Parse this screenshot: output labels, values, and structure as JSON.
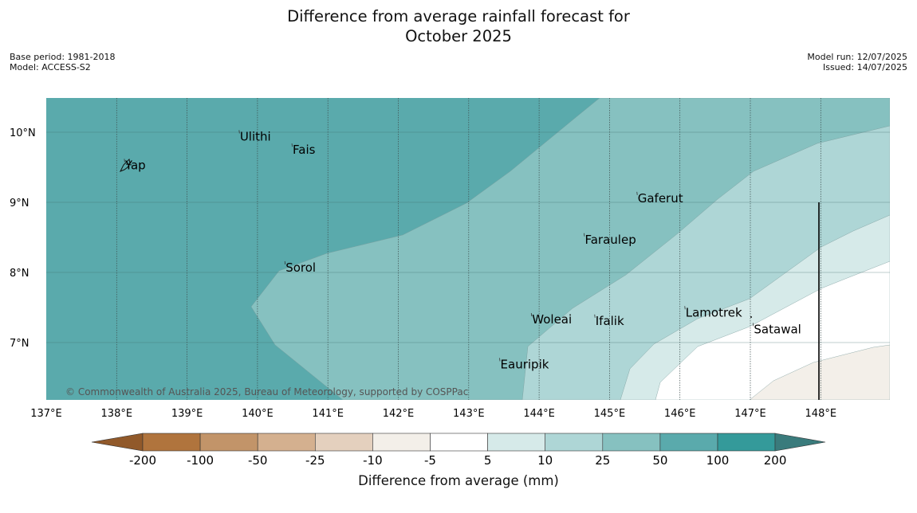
{
  "title": {
    "line1": "Difference from average rainfall forecast for",
    "line2": "October 2025"
  },
  "meta": {
    "base_period": "Base period: 1981-2018",
    "model": "Model: ACCESS-S2",
    "model_run": "Model run: 12/07/2025",
    "issued": "Issued: 14/07/2025"
  },
  "map": {
    "copyright": "© Commonwealth of Australia 2025, Bureau of Meteorology, supported by COSPPac",
    "lon_labels": [
      "137°E",
      "138°E",
      "139°E",
      "140°E",
      "141°E",
      "142°E",
      "143°E",
      "144°E",
      "145°E",
      "146°E",
      "147°E",
      "148°E"
    ],
    "lat_labels": [
      "10°N",
      "9°N",
      "8°N",
      "7°N"
    ],
    "places": [
      {
        "name": "Ulithi",
        "lon": 139.75,
        "lat": 9.95
      },
      {
        "name": "Fais",
        "lon": 140.5,
        "lat": 9.76
      },
      {
        "name": "Yap",
        "lon": 138.12,
        "lat": 9.54
      },
      {
        "name": "Gaferut",
        "lon": 145.4,
        "lat": 9.07
      },
      {
        "name": "Faraulep",
        "lon": 144.65,
        "lat": 8.48
      },
      {
        "name": "Sorol",
        "lon": 140.4,
        "lat": 8.08
      },
      {
        "name": "Woleai",
        "lon": 143.9,
        "lat": 7.34
      },
      {
        "name": "Ifalik",
        "lon": 144.8,
        "lat": 7.32
      },
      {
        "name": "Lamotrek",
        "lon": 146.08,
        "lat": 7.44
      },
      {
        "name": "Satawal",
        "lon": 147.05,
        "lat": 7.2
      },
      {
        "name": "Eauripik",
        "lon": 143.45,
        "lat": 6.7
      }
    ]
  },
  "colors": {
    "gt200": "#3a7b7c",
    "c100_200": "#349a9a",
    "c50_100": "#5aaaac",
    "c25_50": "#86c1c0",
    "c10_25": "#aed6d6",
    "c5_10": "#d6eae9",
    "c_5_5": "#ffffff",
    "c_10_5": "#f3efe9",
    "c_25_10": "#e4d0be",
    "c_50_25": "#d4b08f",
    "c_100_50": "#c29469",
    "c_200_100": "#b0743d",
    "lt_200": "#91592a"
  },
  "colorbar": {
    "label": "Difference from average (mm)",
    "ticks": [
      "-200",
      "-100",
      "-50",
      "-25",
      "-10",
      "-5",
      "5",
      "10",
      "25",
      "50",
      "100",
      "200"
    ]
  }
}
